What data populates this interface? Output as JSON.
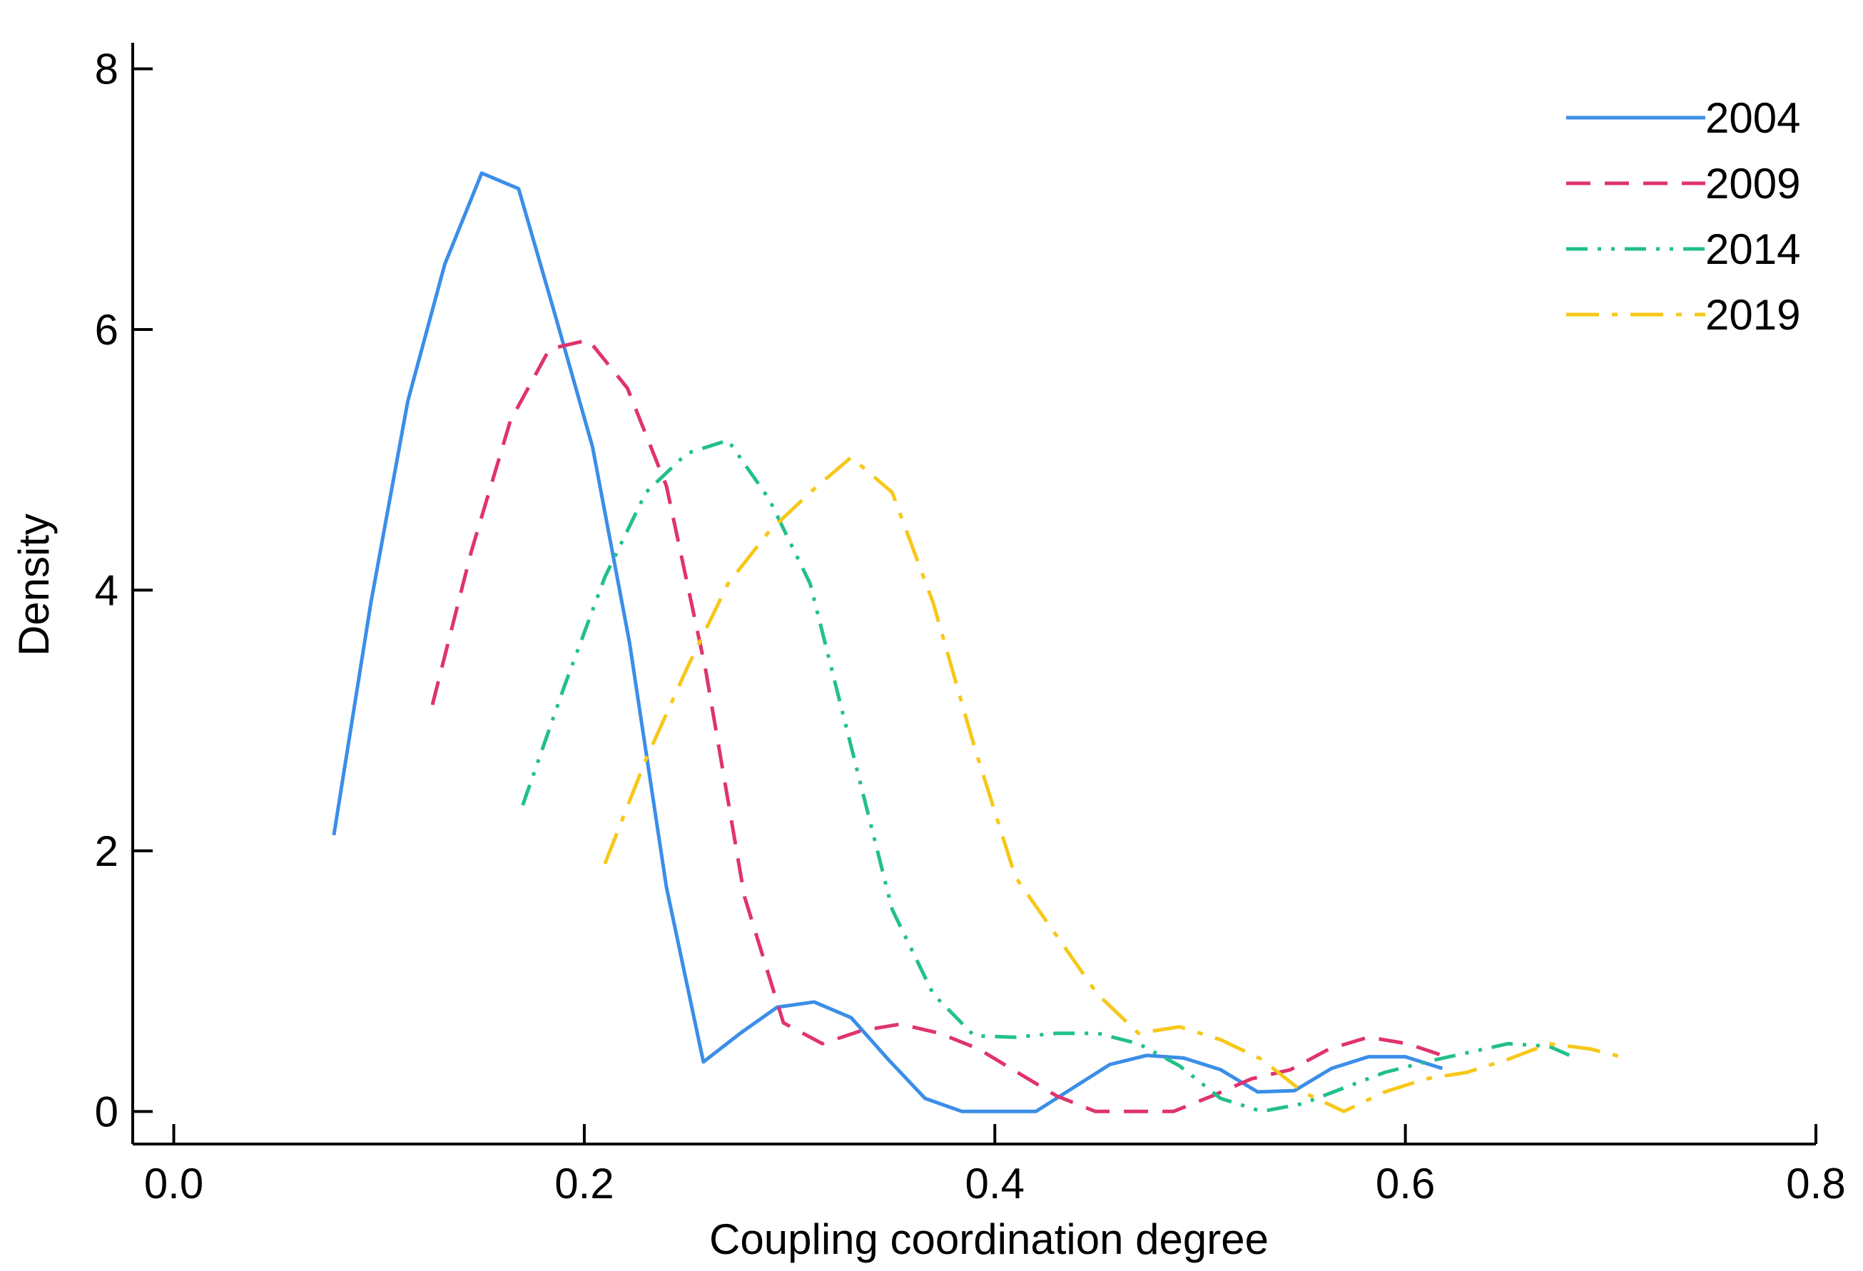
{
  "chart_data": {
    "type": "line",
    "title": "",
    "xlabel": "Coupling coordination degree",
    "ylabel": "Density",
    "xlim": [
      -0.02,
      0.8
    ],
    "ylim": [
      -0.25,
      8.2
    ],
    "xticks": [
      0.0,
      0.2,
      0.4,
      0.6,
      0.8
    ],
    "xtick_labels": [
      "0.0",
      "0.2",
      "0.4",
      "0.6",
      "0.8"
    ],
    "yticks": [
      0,
      2,
      4,
      6,
      8
    ],
    "ytick_labels": [
      "0",
      "2",
      "4",
      "6",
      "8"
    ],
    "grid": false,
    "legend_position": "top-right",
    "series": [
      {
        "name": "2004",
        "color": "#3b8ee8",
        "style": "solid",
        "x": [
          0.078,
          0.096,
          0.114,
          0.132,
          0.15,
          0.168,
          0.186,
          0.204,
          0.222,
          0.24,
          0.258,
          0.276,
          0.294,
          0.312,
          0.33,
          0.348,
          0.366,
          0.384,
          0.402,
          0.42,
          0.438,
          0.456,
          0.474,
          0.492,
          0.51,
          0.528,
          0.546,
          0.564,
          0.582,
          0.6,
          0.618
        ],
        "values": [
          2.12,
          3.9,
          5.45,
          6.5,
          7.2,
          7.08,
          6.1,
          5.1,
          3.6,
          1.72,
          0.38,
          0.6,
          0.8,
          0.84,
          0.72,
          0.4,
          0.1,
          0.0,
          0.0,
          0.0,
          0.18,
          0.36,
          0.43,
          0.41,
          0.32,
          0.15,
          0.16,
          0.33,
          0.42,
          0.42,
          0.33
        ]
      },
      {
        "name": "2009",
        "color": "#e0336c",
        "style": "dashed",
        "x": [
          0.126,
          0.145,
          0.164,
          0.183,
          0.202,
          0.221,
          0.24,
          0.259,
          0.278,
          0.297,
          0.316,
          0.335,
          0.354,
          0.373,
          0.392,
          0.411,
          0.43,
          0.449,
          0.468,
          0.487,
          0.506,
          0.525,
          0.544,
          0.563,
          0.582,
          0.601,
          0.62
        ],
        "values": [
          3.12,
          4.3,
          5.3,
          5.85,
          5.92,
          5.55,
          4.8,
          3.4,
          1.65,
          0.68,
          0.52,
          0.62,
          0.67,
          0.6,
          0.48,
          0.3,
          0.12,
          0.0,
          0.0,
          0.0,
          0.12,
          0.25,
          0.32,
          0.48,
          0.57,
          0.52,
          0.42
        ]
      },
      {
        "name": "2014",
        "color": "#22c08a",
        "style": "dash-dot-dot",
        "x": [
          0.17,
          0.19,
          0.21,
          0.23,
          0.25,
          0.27,
          0.29,
          0.31,
          0.33,
          0.35,
          0.37,
          0.39,
          0.41,
          0.43,
          0.45,
          0.47,
          0.49,
          0.51,
          0.53,
          0.55,
          0.57,
          0.59,
          0.61,
          0.63,
          0.65,
          0.67,
          0.68
        ],
        "values": [
          2.35,
          3.25,
          4.1,
          4.75,
          5.05,
          5.15,
          4.7,
          4.05,
          2.8,
          1.55,
          0.9,
          0.58,
          0.57,
          0.6,
          0.6,
          0.52,
          0.35,
          0.1,
          0.0,
          0.06,
          0.18,
          0.3,
          0.38,
          0.45,
          0.52,
          0.5,
          0.43
        ]
      },
      {
        "name": "2019",
        "color": "#f7c81a",
        "style": "long-dash-dot",
        "x": [
          0.21,
          0.23,
          0.25,
          0.27,
          0.29,
          0.31,
          0.33,
          0.35,
          0.37,
          0.39,
          0.41,
          0.43,
          0.45,
          0.47,
          0.49,
          0.51,
          0.53,
          0.55,
          0.57,
          0.59,
          0.61,
          0.63,
          0.65,
          0.67,
          0.69,
          0.705
        ],
        "values": [
          1.9,
          2.7,
          3.4,
          4.05,
          4.45,
          4.75,
          5.02,
          4.75,
          3.9,
          2.8,
          1.8,
          1.35,
          0.9,
          0.6,
          0.65,
          0.55,
          0.4,
          0.15,
          0.0,
          0.15,
          0.25,
          0.3,
          0.4,
          0.52,
          0.48,
          0.42
        ]
      }
    ]
  }
}
